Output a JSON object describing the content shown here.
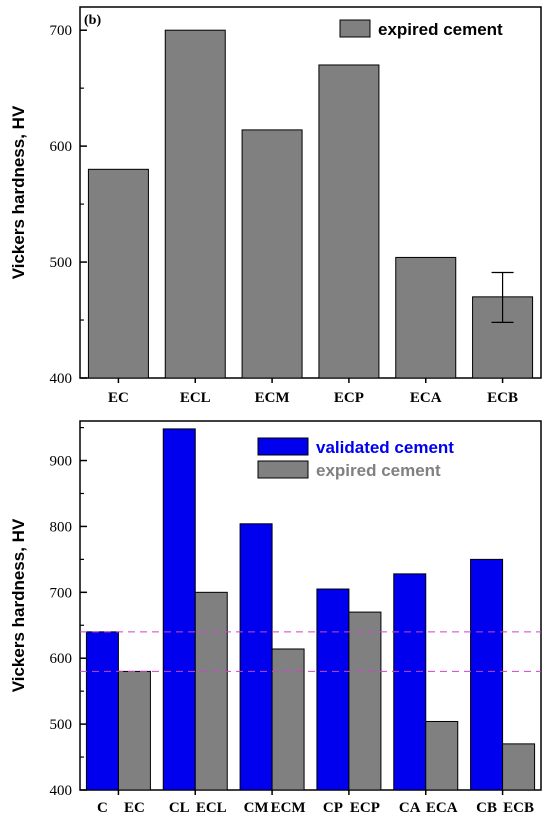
{
  "colors": {
    "validated": "#0000ee",
    "expired": "#808080",
    "reference_line": "#cc44cc"
  },
  "chart_data": [
    {
      "type": "bar",
      "panel_label": "(b)",
      "ylabel": "Vickers hardness, HV",
      "ylim": [
        400,
        720
      ],
      "yticks": [
        400,
        500,
        600,
        700
      ],
      "categories": [
        "EC",
        "ECL",
        "ECM",
        "ECP",
        "ECA",
        "ECB"
      ],
      "series": [
        {
          "name": "expired cement",
          "color": "#808080",
          "values": [
            580,
            700,
            614,
            670,
            504,
            470
          ]
        }
      ],
      "error_bars": [
        {
          "category": "ECB",
          "low": 448,
          "high": 491
        }
      ],
      "legend_position": "top-right"
    },
    {
      "type": "bar",
      "ylabel": "Vickers hardness, HV",
      "ylim": [
        400,
        960
      ],
      "yticks": [
        400,
        500,
        600,
        700,
        800,
        900
      ],
      "categories": [
        "C",
        "CL",
        "CM",
        "CP",
        "CA",
        "CB"
      ],
      "category_labels": [
        [
          "C",
          "EC"
        ],
        [
          "CL",
          "ECL"
        ],
        [
          "CM",
          "ECM"
        ],
        [
          "CP",
          "ECP"
        ],
        [
          "CA",
          "ECA"
        ],
        [
          "CB",
          "ECB"
        ]
      ],
      "series": [
        {
          "name": "validated cement",
          "color": "#0000ee",
          "values": [
            640,
            948,
            804,
            705,
            728,
            750
          ]
        },
        {
          "name": "expired cement",
          "color": "#808080",
          "values": [
            580,
            700,
            614,
            670,
            504,
            470
          ]
        }
      ],
      "reference_lines": [
        640,
        580
      ],
      "legend_position": "top-center"
    }
  ]
}
